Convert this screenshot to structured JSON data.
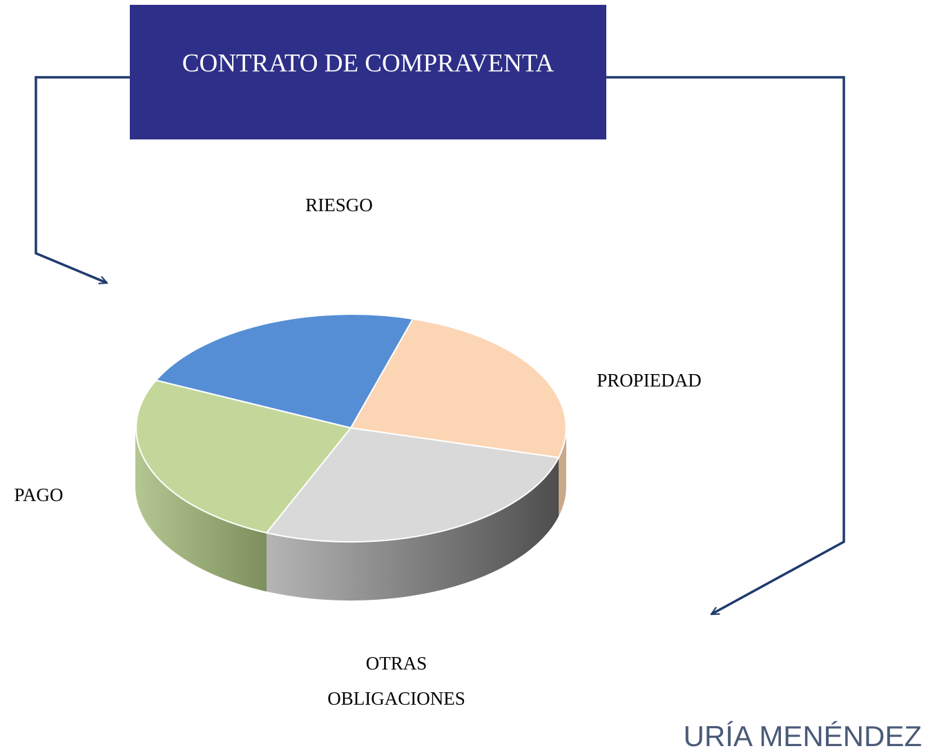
{
  "title": "CONTRATO DE COMPRAVENTA",
  "labels": {
    "riesgo": "RIESGO",
    "propiedad": "PROPIEDAD",
    "pago": "PAGO",
    "otras": "OTRAS",
    "obligaciones": "OBLIGACIONES"
  },
  "logo": "URÍA MENÉNDEZ"
}
